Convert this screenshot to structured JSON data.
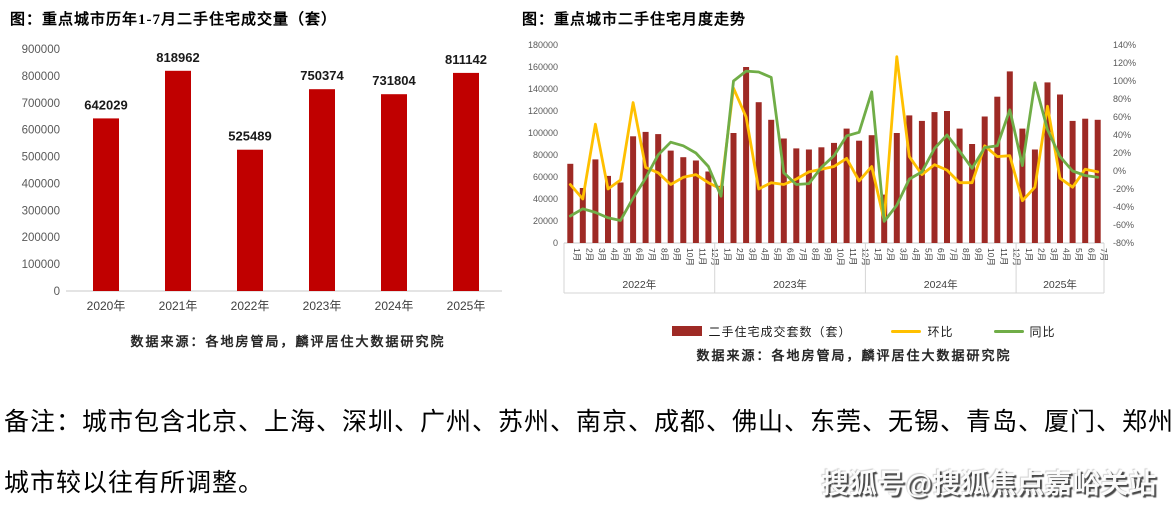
{
  "page": {
    "note_line1": "备注：城市包含北京、上海、深圳、广州、苏州、南京、成都、佛山、东莞、无锡、青岛、厦门、郑州，",
    "note_line2": "城市较以往有所调整。",
    "watermark": "搜狐号@搜狐焦点嘉峪关站"
  },
  "colors": {
    "left_bar": "#C00000",
    "right_bar": "#9E2A25",
    "mom_line": "#FFC000",
    "yoy_line": "#70AD47",
    "axis_text": "#595959",
    "grid_line": "#D5D5D5"
  },
  "chart_data": [
    {
      "id": "annual",
      "type": "bar",
      "title": "图：重点城市历年1-7月二手住宅成交量（套）",
      "source": "数据来源：各地房管局，麟评居住大数据研究院",
      "categories": [
        "2020年",
        "2021年",
        "2022年",
        "2023年",
        "2024年",
        "2025年"
      ],
      "values": [
        642029,
        818962,
        525489,
        750374,
        731804,
        811142
      ],
      "bar_color": "#C00000",
      "ylim": [
        0,
        900000
      ],
      "ytick_step": 100000,
      "grid": false,
      "legend_position": "none"
    },
    {
      "id": "monthly",
      "type": "bar+line",
      "title": "图：重点城市二手住宅月度走势",
      "source": "数据来源：各地房管局，麟评居住大数据研究院",
      "years": [
        {
          "label": "2022年",
          "months": 12
        },
        {
          "label": "2023年",
          "months": 12
        },
        {
          "label": "2024年",
          "months": 12
        },
        {
          "label": "2025年",
          "months": 7
        }
      ],
      "month_labels": [
        "1月",
        "2月",
        "3月",
        "4月",
        "5月",
        "6月",
        "7月",
        "8月",
        "9月",
        "10月",
        "11月",
        "12月",
        "1月",
        "2月",
        "3月",
        "4月",
        "5月",
        "6月",
        "7月",
        "8月",
        "9月",
        "10月",
        "11月",
        "12月",
        "1月",
        "2月",
        "3月",
        "4月",
        "5月",
        "6月",
        "7月",
        "8月",
        "9月",
        "10月",
        "11月",
        "12月",
        "1月",
        "2月",
        "3月",
        "4月",
        "5月",
        "6月",
        "7月"
      ],
      "left_axis": {
        "min": 0,
        "max": 180000,
        "step": 20000
      },
      "right_axis": {
        "min": -80,
        "max": 140,
        "step": 20,
        "suffix": "%"
      },
      "grid": false,
      "legend_position": "bottom",
      "series": [
        {
          "name": "二手住宅成交套数（套）",
          "type": "bar",
          "axis": "left",
          "color": "#9E2A25",
          "values": [
            72000,
            50000,
            76000,
            61000,
            55000,
            97000,
            101000,
            99000,
            84000,
            78000,
            75000,
            65000,
            52000,
            100000,
            160000,
            128000,
            112000,
            95000,
            86000,
            85000,
            87000,
            91000,
            104000,
            93000,
            98000,
            44000,
            100000,
            116000,
            111000,
            119000,
            120000,
            104000,
            90000,
            115000,
            133000,
            156000,
            104000,
            85000,
            146000,
            135000,
            111000,
            113000,
            112000
          ]
        },
        {
          "name": "环比",
          "type": "line",
          "axis": "right",
          "color": "#FFC000",
          "values": [
            -15,
            -31,
            52,
            -20,
            -10,
            76,
            4,
            -2,
            -15,
            -7,
            -4,
            -13,
            -20,
            92,
            60,
            -20,
            -13,
            -15,
            -9,
            -1,
            2,
            5,
            14,
            -11,
            5,
            -55,
            127,
            16,
            -4,
            7,
            1,
            -13,
            -13,
            28,
            16,
            17,
            -33,
            -18,
            72,
            -8,
            -18,
            2,
            -1
          ]
        },
        {
          "name": "同比",
          "type": "line",
          "axis": "right",
          "color": "#70AD47",
          "values": [
            -50,
            -42,
            -46,
            -52,
            -55,
            -30,
            -8,
            18,
            32,
            28,
            20,
            5,
            -28,
            100,
            111,
            110,
            104,
            -2,
            -15,
            -14,
            4,
            17,
            39,
            43,
            88,
            -56,
            -38,
            -9,
            -1,
            25,
            40,
            22,
            3,
            26,
            28,
            68,
            6,
            98,
            46,
            16,
            0,
            -5,
            -7
          ]
        }
      ]
    }
  ]
}
